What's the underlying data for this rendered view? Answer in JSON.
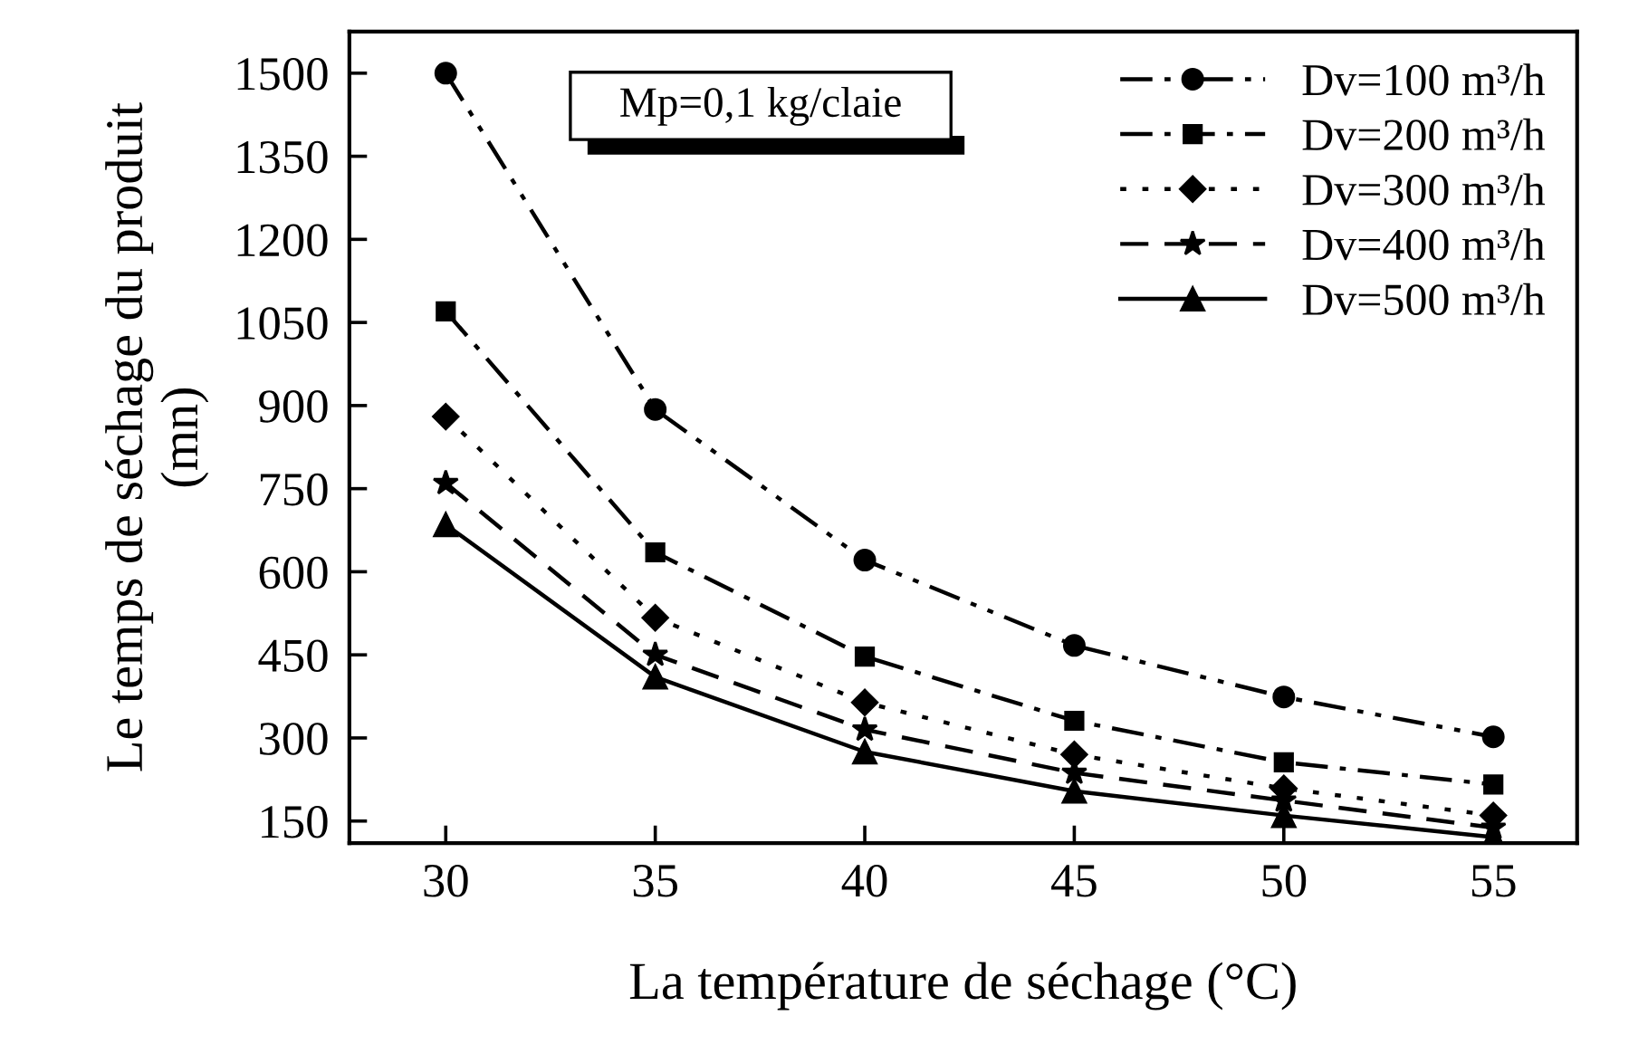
{
  "chart_data": {
    "type": "line",
    "xlabel": "La température de séchage (°C)",
    "ylabel": "Le temps de séchage du produit\n(mn)",
    "x": [
      30,
      35,
      40,
      45,
      50,
      55
    ],
    "series": [
      {
        "name": "Dv=100 m³/h",
        "color": "#000000",
        "marker": "circle",
        "line_style": "dashdotdot",
        "values": [
          1500,
          893,
          621,
          467,
          374,
          302
        ]
      },
      {
        "name": "Dv=200 m³/h",
        "color": "#000000",
        "marker": "square",
        "line_style": "dashdot",
        "values": [
          1070,
          635,
          447,
          331,
          256,
          216
        ]
      },
      {
        "name": "Dv=300 m³/h",
        "color": "#000000",
        "marker": "diamond",
        "line_style": "dotted",
        "values": [
          880,
          517,
          364,
          270,
          209,
          160
        ]
      },
      {
        "name": "Dv=400 m³/h",
        "color": "#000000",
        "marker": "star",
        "line_style": "dashed",
        "values": [
          760,
          450,
          315,
          237,
          187,
          138
        ]
      },
      {
        "name": "Dv=500 m³/h",
        "color": "#000000",
        "marker": "triangle",
        "line_style": "solid",
        "values": [
          685,
          410,
          275,
          204,
          160,
          121
        ]
      }
    ],
    "xlim": [
      27.7,
      57
    ],
    "ylim": [
      110,
      1575
    ],
    "xticks": [
      30,
      35,
      40,
      45,
      50,
      55
    ],
    "yticks": [
      150,
      300,
      450,
      600,
      750,
      900,
      1050,
      1200,
      1350,
      1500
    ],
    "annotations": [
      "Mp=0,1 kg/claie"
    ],
    "grid": false,
    "legend": "top right"
  }
}
